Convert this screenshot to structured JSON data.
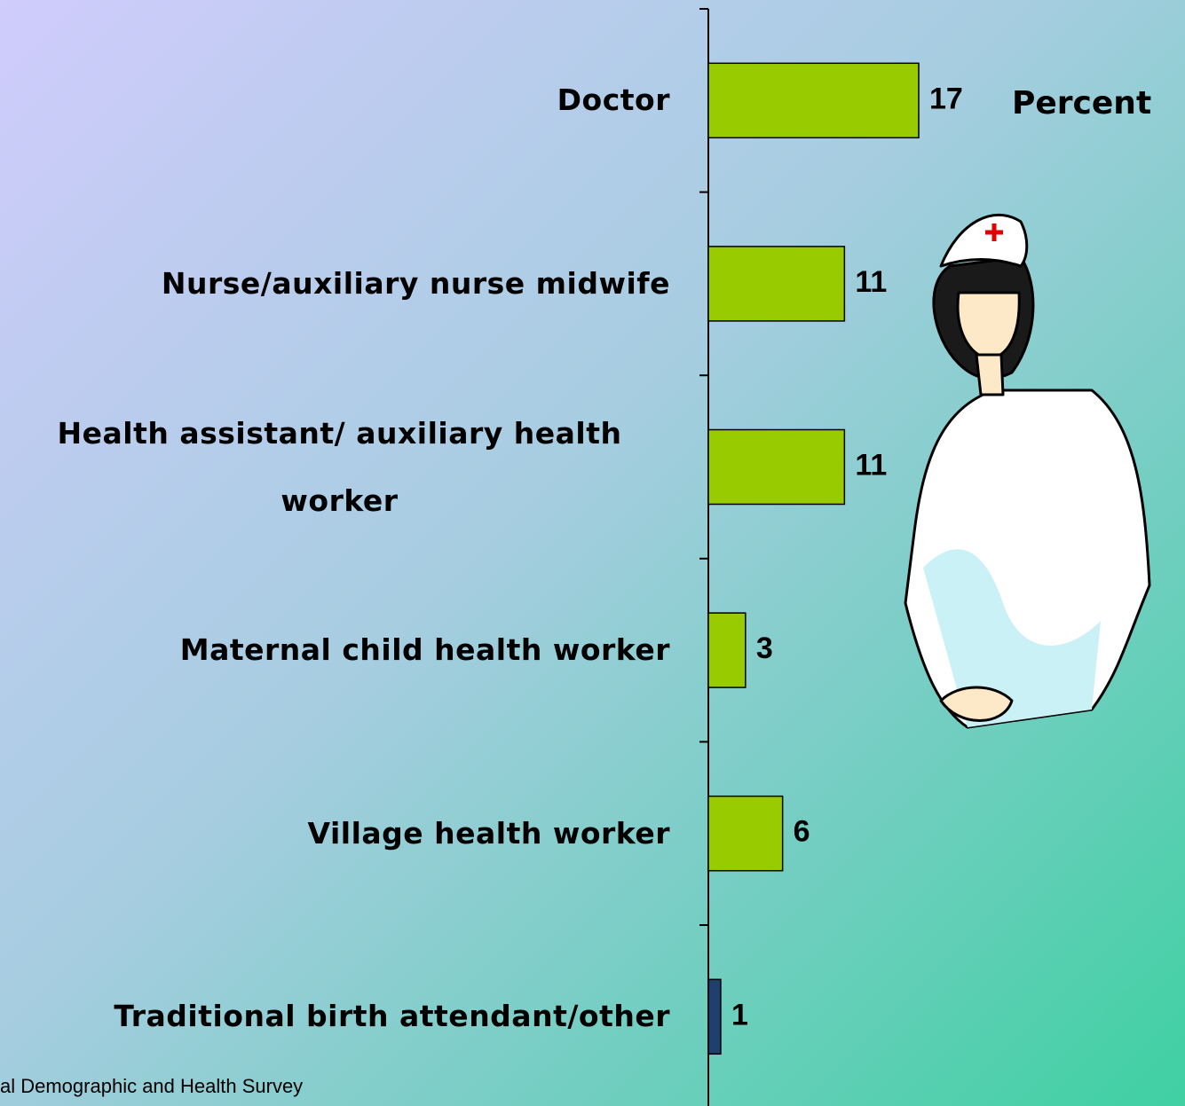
{
  "chart_data": {
    "type": "hbar",
    "categories": [
      "Doctor",
      "Nurse/auxiliary nurse midwife",
      "Health assistant/ auxiliary health worker",
      "Maternal child health worker",
      "Village health worker",
      "Traditional birth attendant/other"
    ],
    "values": [
      17,
      11,
      11,
      3,
      6,
      1
    ],
    "colors": [
      "#99cc00",
      "#99cc00",
      "#99cc00",
      "#99cc00",
      "#99cc00",
      "#1f3f6f"
    ],
    "annotation": "Percent",
    "source": "al Demographic and Health Survey"
  }
}
